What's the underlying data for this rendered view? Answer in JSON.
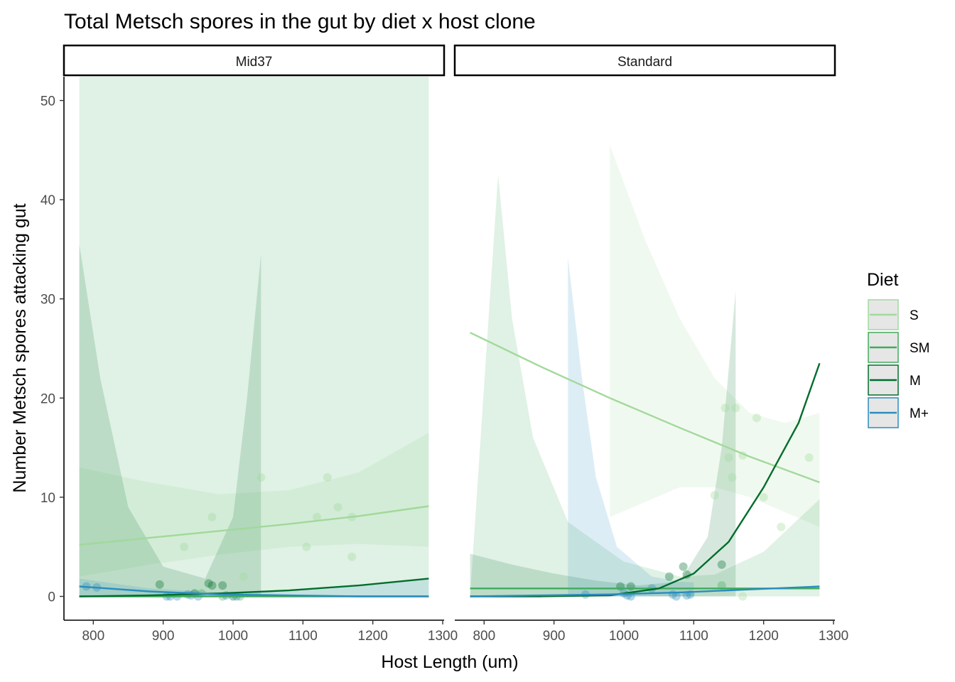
{
  "chart_data": {
    "type": "scatter",
    "title": "Total Metsch spores in the gut by diet x host clone",
    "xlabel": "Host Length (um)",
    "ylabel": "Number Metsch spores attacking gut",
    "xlim": [
      758,
      1302
    ],
    "ylim": [
      -2.4,
      52.4
    ],
    "xticks": [
      800,
      900,
      1000,
      1100,
      1200,
      1300
    ],
    "yticks": [
      0,
      10,
      20,
      30,
      40,
      50
    ],
    "grid": false,
    "legend": {
      "title": "Diet",
      "position": "right",
      "entries": [
        {
          "label": "S",
          "color": "#a1d99b"
        },
        {
          "label": "SM",
          "color": "#41ab5d"
        },
        {
          "label": "M",
          "color": "#006d2c"
        },
        {
          "label": "M+",
          "color": "#2b8cbe"
        }
      ]
    },
    "panels": [
      {
        "label": "Mid37",
        "series": [
          {
            "name": "S",
            "points": [
              [
                930,
                5
              ],
              [
                970,
                8
              ],
              [
                1015,
                2
              ],
              [
                1040,
                12
              ],
              [
                1105,
                5
              ],
              [
                1120,
                8
              ],
              [
                1135,
                12
              ],
              [
                1150,
                9
              ],
              [
                1170,
                8
              ],
              [
                1170,
                4
              ]
            ],
            "fit": [
              [
                780,
                5.2
              ],
              [
                880,
                5.9
              ],
              [
                980,
                6.6
              ],
              [
                1080,
                7.3
              ],
              [
                1180,
                8.1
              ],
              [
                1280,
                9.1
              ]
            ],
            "band_upper": [
              [
                780,
                13
              ],
              [
                880,
                11.5
              ],
              [
                980,
                10.3
              ],
              [
                1080,
                10.7
              ],
              [
                1180,
                12.5
              ],
              [
                1280,
                16.5
              ]
            ],
            "band_lower": [
              [
                780,
                2
              ],
              [
                880,
                3.2
              ],
              [
                980,
                4.2
              ],
              [
                1080,
                5
              ],
              [
                1180,
                5.3
              ],
              [
                1280,
                5
              ]
            ]
          },
          {
            "name": "SM",
            "points": [
              [
                955,
                0.3
              ],
              [
                985,
                0
              ],
              [
                1010,
                0
              ]
            ],
            "fit": [
              [
                780,
                0
              ],
              [
                1280,
                0
              ]
            ],
            "band_upper": [
              [
                780,
                52.4
              ],
              [
                1280,
                52.4
              ]
            ],
            "band_lower": [
              [
                780,
                0
              ],
              [
                1280,
                0
              ]
            ]
          },
          {
            "name": "M",
            "points": [
              [
                895,
                1.2
              ],
              [
                945,
                0.3
              ],
              [
                965,
                1.3
              ],
              [
                970,
                1.1
              ],
              [
                1000,
                0
              ],
              [
                985,
                1.1
              ]
            ],
            "fit": [
              [
                780,
                0
              ],
              [
                880,
                0.1
              ],
              [
                980,
                0.3
              ],
              [
                1080,
                0.6
              ],
              [
                1180,
                1.1
              ],
              [
                1280,
                1.8
              ]
            ],
            "band_upper": [
              [
                780,
                35.5
              ],
              [
                810,
                22
              ],
              [
                850,
                9
              ],
              [
                900,
                3
              ],
              [
                960,
                1.8
              ],
              [
                1000,
                8
              ],
              [
                1020,
                20
              ],
              [
                1040,
                34.5
              ],
              [
                1040,
                1
              ]
            ],
            "band_lower": [
              [
                780,
                0
              ],
              [
                1040,
                0
              ]
            ]
          },
          {
            "name": "M+",
            "points": [
              [
                790,
                1
              ],
              [
                805,
                0.9
              ],
              [
                905,
                0
              ],
              [
                910,
                0
              ],
              [
                920,
                0
              ],
              [
                935,
                0.2
              ],
              [
                940,
                0.1
              ],
              [
                950,
                0
              ],
              [
                990,
                0.1
              ],
              [
                1005,
                0
              ]
            ],
            "fit": [
              [
                780,
                1
              ],
              [
                880,
                0.5
              ],
              [
                980,
                0.2
              ],
              [
                1080,
                0.1
              ],
              [
                1180,
                0
              ],
              [
                1280,
                0
              ]
            ],
            "band_upper": [
              [
                780,
                1.8
              ],
              [
                880,
                0.8
              ],
              [
                980,
                0.4
              ],
              [
                1080,
                0.5
              ],
              [
                1180,
                1
              ],
              [
                1280,
                1.7
              ]
            ],
            "band_lower": [
              [
                780,
                0
              ],
              [
                1280,
                0
              ]
            ]
          }
        ]
      },
      {
        "label": "Standard",
        "series": [
          {
            "name": "S",
            "points": [
              [
                1130,
                10.2
              ],
              [
                1145,
                19
              ],
              [
                1150,
                14
              ],
              [
                1155,
                12
              ],
              [
                1160,
                19
              ],
              [
                1170,
                14.2
              ],
              [
                1190,
                18
              ],
              [
                1200,
                10
              ],
              [
                1225,
                7
              ],
              [
                1265,
                14
              ],
              [
                1170,
                0
              ]
            ],
            "fit": [
              [
                780,
                26.6
              ],
              [
                880,
                23.2
              ],
              [
                980,
                20
              ],
              [
                1080,
                17
              ],
              [
                1180,
                14.1
              ],
              [
                1280,
                11.5
              ]
            ],
            "band_upper": [
              [
                980,
                45.5
              ],
              [
                1030,
                36
              ],
              [
                1080,
                28
              ],
              [
                1130,
                22
              ],
              [
                1180,
                18.5
              ],
              [
                1230,
                17.5
              ],
              [
                1280,
                18.5
              ]
            ],
            "band_lower": [
              [
                980,
                8
              ],
              [
                1030,
                9.5
              ],
              [
                1080,
                11
              ],
              [
                1130,
                11
              ],
              [
                1180,
                10
              ],
              [
                1230,
                8.5
              ],
              [
                1280,
                7
              ]
            ]
          },
          {
            "name": "SM",
            "points": [
              [
                1140,
                1.1
              ]
            ],
            "fit": [
              [
                780,
                0.8
              ],
              [
                1280,
                0.8
              ]
            ],
            "band_upper": [
              [
                820,
                42.5
              ],
              [
                840,
                28
              ],
              [
                870,
                16
              ],
              [
                920,
                7.5
              ],
              [
                1000,
                3.5
              ],
              [
                1080,
                2
              ],
              [
                1130,
                2.2
              ],
              [
                1200,
                4.5
              ],
              [
                1280,
                9.8
              ]
            ],
            "band_lower": [
              [
                780,
                0
              ],
              [
                1280,
                0
              ]
            ]
          },
          {
            "name": "M",
            "points": [
              [
                995,
                1
              ],
              [
                1010,
                1
              ],
              [
                1065,
                2
              ],
              [
                1085,
                3
              ],
              [
                1090,
                2.2
              ],
              [
                1140,
                3.2
              ]
            ],
            "fit": [
              [
                780,
                0
              ],
              [
                880,
                0
              ],
              [
                980,
                0.1
              ],
              [
                1050,
                0.8
              ],
              [
                1100,
                2.3
              ],
              [
                1150,
                5.5
              ],
              [
                1200,
                11
              ],
              [
                1250,
                17.5
              ],
              [
                1280,
                23.5
              ]
            ],
            "band_upper": [
              [
                780,
                4.3
              ],
              [
                840,
                3.2
              ],
              [
                900,
                2.3
              ],
              [
                960,
                1.6
              ],
              [
                1020,
                1.1
              ],
              [
                1080,
                1.5
              ],
              [
                1120,
                6
              ],
              [
                1140,
                15
              ],
              [
                1160,
                30.8
              ],
              [
                1160,
                1
              ]
            ],
            "band_lower": [
              [
                780,
                0
              ],
              [
                1160,
                0
              ]
            ]
          },
          {
            "name": "M+",
            "points": [
              [
                945,
                0.2
              ],
              [
                1000,
                0.3
              ],
              [
                1005,
                0.1
              ],
              [
                1010,
                0
              ],
              [
                1040,
                0.8
              ],
              [
                1070,
                0.2
              ],
              [
                1075,
                0
              ],
              [
                1090,
                0.1
              ],
              [
                1095,
                0.2
              ]
            ],
            "fit": [
              [
                780,
                0
              ],
              [
                880,
                0.1
              ],
              [
                980,
                0.2
              ],
              [
                1080,
                0.4
              ],
              [
                1180,
                0.7
              ],
              [
                1280,
                1
              ]
            ],
            "band_upper": [
              [
                920,
                34.2
              ],
              [
                940,
                22
              ],
              [
                960,
                12
              ],
              [
                990,
                5
              ],
              [
                1040,
                2
              ],
              [
                1080,
                1.5
              ],
              [
                1100,
                1.4
              ]
            ],
            "band_lower": [
              [
                920,
                0
              ],
              [
                1100,
                0
              ]
            ]
          }
        ]
      }
    ]
  }
}
